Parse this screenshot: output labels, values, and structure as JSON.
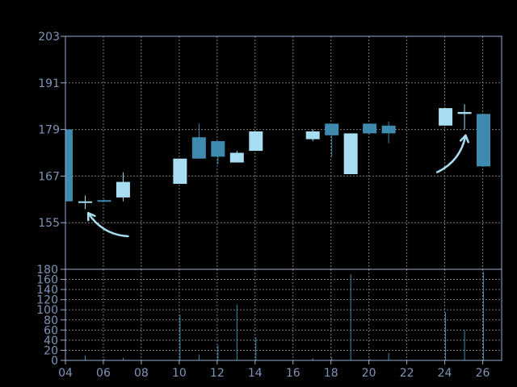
{
  "chart_data": {
    "type": "candlestick",
    "x_ticks": [
      "04",
      "06",
      "08",
      "10",
      "12",
      "14",
      "16",
      "18",
      "20",
      "22",
      "24",
      "26"
    ],
    "price_axis": {
      "ylim": [
        143,
        203
      ],
      "ticks": [
        155,
        167,
        179,
        191,
        203
      ]
    },
    "volume_axis": {
      "ylim": [
        0,
        180
      ],
      "ticks": [
        0,
        20,
        40,
        60,
        80,
        100,
        120,
        140,
        160,
        180
      ]
    },
    "grid": true,
    "colors": {
      "background": "#000000",
      "frame": "#9aaad0",
      "grid": "#7a7a7a",
      "tick_text": "#7e93b8",
      "up": "#a8dcf0",
      "down": "#3f8bb0",
      "arrow": "#a8dcf0"
    },
    "candles": [
      {
        "day": 4,
        "open": 179.0,
        "high": 179.5,
        "low": 160.5,
        "close": 160.5,
        "volume": 2
      },
      {
        "day": 5,
        "open": 160.5,
        "high": 162.0,
        "low": 158.5,
        "close": 160.5,
        "volume": 10
      },
      {
        "day": 6,
        "open": 160.8,
        "high": 161.0,
        "low": 160.5,
        "close": 160.6,
        "volume": 3
      },
      {
        "day": 7,
        "open": 161.5,
        "high": 168.0,
        "low": 160.5,
        "close": 165.5,
        "volume": 5
      },
      {
        "day": 10,
        "open": 165.0,
        "high": 171.5,
        "low": 165.0,
        "close": 171.5,
        "volume": 90
      },
      {
        "day": 11,
        "open": 177.0,
        "high": 180.5,
        "low": 171.5,
        "close": 171.5,
        "volume": 12
      },
      {
        "day": 12,
        "open": 176.0,
        "high": 176.0,
        "low": 170.0,
        "close": 172.0,
        "volume": 30
      },
      {
        "day": 13,
        "open": 170.5,
        "high": 173.5,
        "low": 170.5,
        "close": 173.0,
        "volume": 110
      },
      {
        "day": 14,
        "open": 173.5,
        "high": 178.5,
        "low": 173.5,
        "close": 178.5,
        "volume": 45
      },
      {
        "day": 17,
        "open": 176.5,
        "high": 179.0,
        "low": 176.0,
        "close": 178.5,
        "volume": 4
      },
      {
        "day": 18,
        "open": 180.5,
        "high": 180.5,
        "low": 172.0,
        "close": 177.5,
        "volume": 6
      },
      {
        "day": 19,
        "open": 167.5,
        "high": 178.0,
        "low": 167.5,
        "close": 178.0,
        "volume": 170
      },
      {
        "day": 20,
        "open": 180.5,
        "high": 180.5,
        "low": 178.0,
        "close": 178.0,
        "volume": 3
      },
      {
        "day": 21,
        "open": 180.0,
        "high": 181.0,
        "low": 175.5,
        "close": 178.0,
        "volume": 15
      },
      {
        "day": 24,
        "open": 180.0,
        "high": 184.5,
        "low": 180.0,
        "close": 184.5,
        "volume": 95
      },
      {
        "day": 25,
        "open": 183.0,
        "high": 185.5,
        "low": 179.0,
        "close": 183.5,
        "volume": 60
      },
      {
        "day": 26,
        "open": 183.0,
        "high": 183.0,
        "low": 169.5,
        "close": 169.5,
        "volume": 175
      }
    ],
    "annotations": [
      {
        "type": "arrow",
        "from": {
          "day": 7.3,
          "price": 151.5
        },
        "to": {
          "day": 5.2,
          "price": 157.5
        }
      },
      {
        "type": "arrow",
        "from": {
          "day": 23.6,
          "price": 168.0
        },
        "to": {
          "day": 25.1,
          "price": 177.5
        }
      }
    ]
  }
}
